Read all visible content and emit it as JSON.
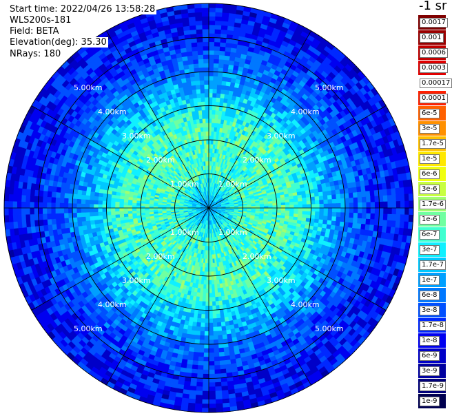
{
  "info": {
    "start_time": "Start time: 2022/04/26 13:58:28",
    "site": "WLS200s-181",
    "field": "Field: BETA",
    "elevation": "Elevation(deg): 35.30",
    "nrays": "NRays: 180"
  },
  "unit_label": "-1 sr",
  "colors": {
    "legend": [
      "#800000",
      "#9a0000",
      "#c00000",
      "#e00000",
      "#ffffff",
      "#ff2000",
      "#ff6000",
      "#ff9000",
      "#ffc000",
      "#ffe800",
      "#f0ff10",
      "#c8ff40",
      "#a0ff70",
      "#70ffa0",
      "#40ffd0",
      "#10f0ff",
      "#00c8ff",
      "#00a0ff",
      "#0078ff",
      "#0050ff",
      "#0028ff",
      "#0000f0",
      "#0000c8",
      "#0000a0",
      "#00007a",
      "#000050"
    ],
    "grid": "#000000",
    "ring_label": "#ffffff"
  },
  "chart_data": {
    "type": "heatmap",
    "projection": "polar PPI",
    "max_range_km": 6.0,
    "range_rings_km": [
      1,
      2,
      3,
      4,
      5,
      6
    ],
    "azimuth_lines_deg": [
      0,
      30,
      60,
      90,
      120,
      150,
      180,
      210,
      240,
      270,
      300,
      330
    ],
    "ring_labels": [
      "1.00km",
      "2.00km",
      "3.00km",
      "4.00km",
      "5.00km"
    ],
    "colorbar_ticks": [
      "0.0017",
      "0.001",
      "0.0006",
      "0.0003",
      "0.00017",
      "0.0001",
      "6e-5",
      "3e-5",
      "1.7e-5",
      "1e-5",
      "6e-6",
      "3e-6",
      "1.7e-6",
      "1e-6",
      "6e-7",
      "3e-7",
      "1.7e-7",
      "1e-7",
      "6e-8",
      "3e-8",
      "1.7e-8",
      "1e-8",
      "6e-9",
      "3e-9",
      "1.7e-9",
      "1e-9"
    ],
    "field_profile": [
      {
        "range_km": 0.0,
        "value": "1e-7"
      },
      {
        "range_km": 1.0,
        "value": "6e-7"
      },
      {
        "range_km": 2.5,
        "value": "6e-7"
      },
      {
        "range_km": 3.0,
        "value": "3e-7"
      },
      {
        "range_km": 4.0,
        "value": "6e-8"
      },
      {
        "range_km": 5.0,
        "value": "1.7e-8"
      },
      {
        "range_km": 6.0,
        "value": "1e-8"
      }
    ]
  }
}
